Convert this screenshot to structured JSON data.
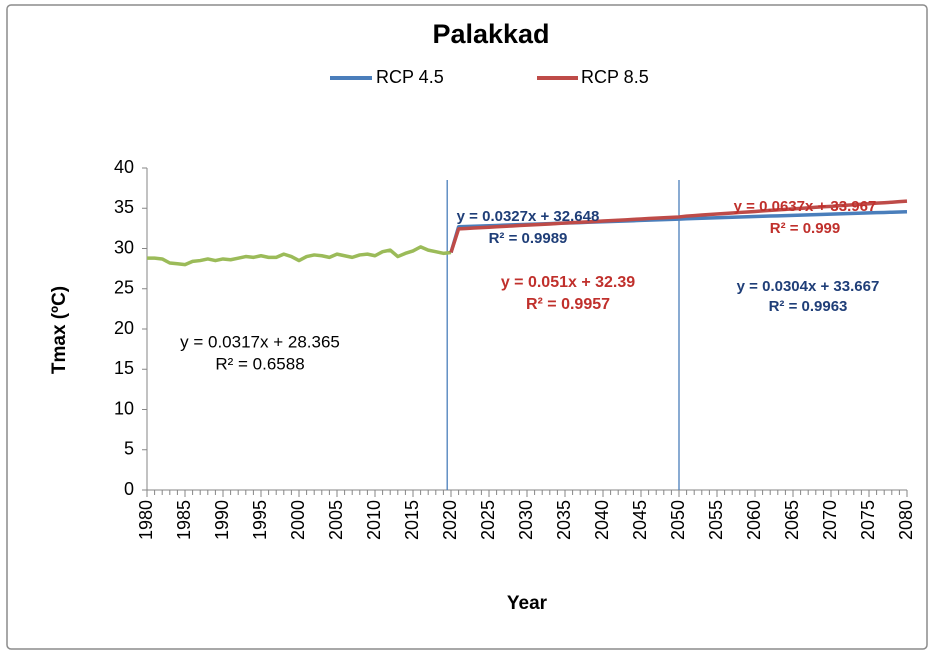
{
  "chart_data": {
    "type": "line",
    "title": "Palakkad",
    "xlabel": "Year",
    "ylabel": "Tmax (ºC)",
    "x": [
      1980,
      1981,
      1982,
      1983,
      1984,
      1985,
      1986,
      1987,
      1988,
      1989,
      1990,
      1991,
      1992,
      1993,
      1994,
      1995,
      1996,
      1997,
      1998,
      1999,
      2000,
      2001,
      2002,
      2003,
      2004,
      2005,
      2006,
      2007,
      2008,
      2009,
      2010,
      2011,
      2012,
      2013,
      2014,
      2015,
      2016,
      2017,
      2018,
      2019,
      2020,
      2021,
      2022,
      2023,
      2024,
      2025,
      2026,
      2027,
      2028,
      2029,
      2030,
      2031,
      2032,
      2033,
      2034,
      2035,
      2036,
      2037,
      2038,
      2039,
      2040,
      2041,
      2042,
      2043,
      2044,
      2045,
      2046,
      2047,
      2048,
      2049,
      2050,
      2051,
      2052,
      2053,
      2054,
      2055,
      2056,
      2057,
      2058,
      2059,
      2060,
      2061,
      2062,
      2063,
      2064,
      2065,
      2066,
      2067,
      2068,
      2069,
      2070,
      2071,
      2072,
      2073,
      2074,
      2075,
      2076,
      2077,
      2078,
      2079,
      2080
    ],
    "series": [
      {
        "color": "#9bbb59",
        "values": [
          28.8,
          28.8,
          28.7,
          28.2,
          28.1,
          28.0,
          28.4,
          28.5,
          28.7,
          28.5,
          28.7,
          28.6,
          28.8,
          29.0,
          28.9,
          29.1,
          28.9,
          28.9,
          29.3,
          29.0,
          28.5,
          29.0,
          29.2,
          29.1,
          28.9,
          29.3,
          29.1,
          28.9,
          29.2,
          29.3,
          29.1,
          29.6,
          29.8,
          29.0,
          29.4,
          29.7,
          30.2,
          29.8,
          29.6,
          29.4,
          29.5,
          null,
          null,
          null,
          null,
          null,
          null,
          null,
          null,
          null,
          null,
          null,
          null,
          null,
          null,
          null,
          null,
          null,
          null,
          null,
          null,
          null,
          null,
          null,
          null,
          null,
          null,
          null,
          null,
          null,
          null,
          null,
          null,
          null,
          null,
          null,
          null,
          null,
          null,
          null,
          null,
          null,
          null,
          null,
          null,
          null,
          null,
          null,
          null,
          null,
          null,
          null,
          null,
          null,
          null,
          null,
          null,
          null,
          null,
          null,
          null
        ]
      },
      {
        "name": "RCP 4.5",
        "color": "#4a7ebb",
        "values": [
          null,
          null,
          null,
          null,
          null,
          null,
          null,
          null,
          null,
          null,
          null,
          null,
          null,
          null,
          null,
          null,
          null,
          null,
          null,
          null,
          null,
          null,
          null,
          null,
          null,
          null,
          null,
          null,
          null,
          null,
          null,
          null,
          null,
          null,
          null,
          null,
          null,
          null,
          null,
          null,
          29.5,
          32.7,
          32.73,
          32.77,
          32.8,
          32.83,
          32.86,
          32.9,
          32.93,
          32.96,
          33.0,
          33.03,
          33.06,
          33.09,
          33.13,
          33.16,
          33.19,
          33.22,
          33.26,
          33.29,
          33.32,
          33.36,
          33.39,
          33.42,
          33.45,
          33.49,
          33.52,
          33.55,
          33.58,
          33.62,
          33.65,
          33.7,
          33.73,
          33.76,
          33.79,
          33.82,
          33.85,
          33.88,
          33.91,
          33.94,
          33.97,
          34.0,
          34.03,
          34.06,
          34.09,
          34.12,
          34.15,
          34.18,
          34.21,
          34.24,
          34.27,
          34.3,
          34.33,
          34.36,
          34.39,
          34.42,
          34.45,
          34.48,
          34.51,
          34.54,
          34.57
        ]
      },
      {
        "name": "RCP 8.5",
        "color": "#be4b48",
        "values": [
          null,
          null,
          null,
          null,
          null,
          null,
          null,
          null,
          null,
          null,
          null,
          null,
          null,
          null,
          null,
          null,
          null,
          null,
          null,
          null,
          null,
          null,
          null,
          null,
          null,
          null,
          null,
          null,
          null,
          null,
          null,
          null,
          null,
          null,
          null,
          null,
          null,
          null,
          null,
          null,
          29.5,
          32.44,
          32.49,
          32.54,
          32.59,
          32.64,
          32.7,
          32.75,
          32.8,
          32.85,
          32.9,
          32.95,
          33.0,
          33.05,
          33.1,
          33.16,
          33.21,
          33.26,
          33.31,
          33.36,
          33.41,
          33.46,
          33.51,
          33.56,
          33.62,
          33.67,
          33.72,
          33.77,
          33.82,
          33.87,
          33.92,
          34.03,
          34.09,
          34.16,
          34.22,
          34.29,
          34.35,
          34.41,
          34.48,
          34.54,
          34.6,
          34.67,
          34.73,
          34.8,
          34.86,
          34.92,
          34.99,
          35.05,
          35.12,
          35.18,
          35.24,
          35.31,
          35.37,
          35.43,
          35.5,
          35.56,
          35.63,
          35.69,
          35.75,
          35.82,
          35.88
        ]
      }
    ],
    "xlim": [
      1980,
      2080
    ],
    "xticks": [
      1980,
      1985,
      1990,
      1995,
      2000,
      2005,
      2010,
      2015,
      2020,
      2025,
      2030,
      2035,
      2040,
      2045,
      2050,
      2055,
      2060,
      2065,
      2070,
      2075,
      2080
    ],
    "ylim": [
      0,
      40
    ],
    "yticks": [
      0,
      5,
      10,
      15,
      20,
      25,
      30,
      35,
      40
    ],
    "vlines": [
      2019.5,
      2050
    ],
    "vline_color": "#4a7ebb",
    "legend": "top",
    "annotations": [
      {
        "lines": [
          "y = 0.0317x + 28.365",
          "R² = 0.6588"
        ],
        "color": "#000000"
      },
      {
        "lines": [
          "y = 0.0327x + 32.648",
          "R² = 0.9989"
        ],
        "color": "#1f3e78"
      },
      {
        "lines": [
          "y = 0.0637x + 33.967",
          "R² = 0.999"
        ],
        "color": "#c0302c"
      },
      {
        "lines": [
          "y = 0.051x + 32.39",
          "R² = 0.9957"
        ],
        "color": "#c0302c"
      },
      {
        "lines": [
          "y = 0.0304x + 33.667",
          "R² = 0.9963"
        ],
        "color": "#1f3e78"
      }
    ]
  }
}
